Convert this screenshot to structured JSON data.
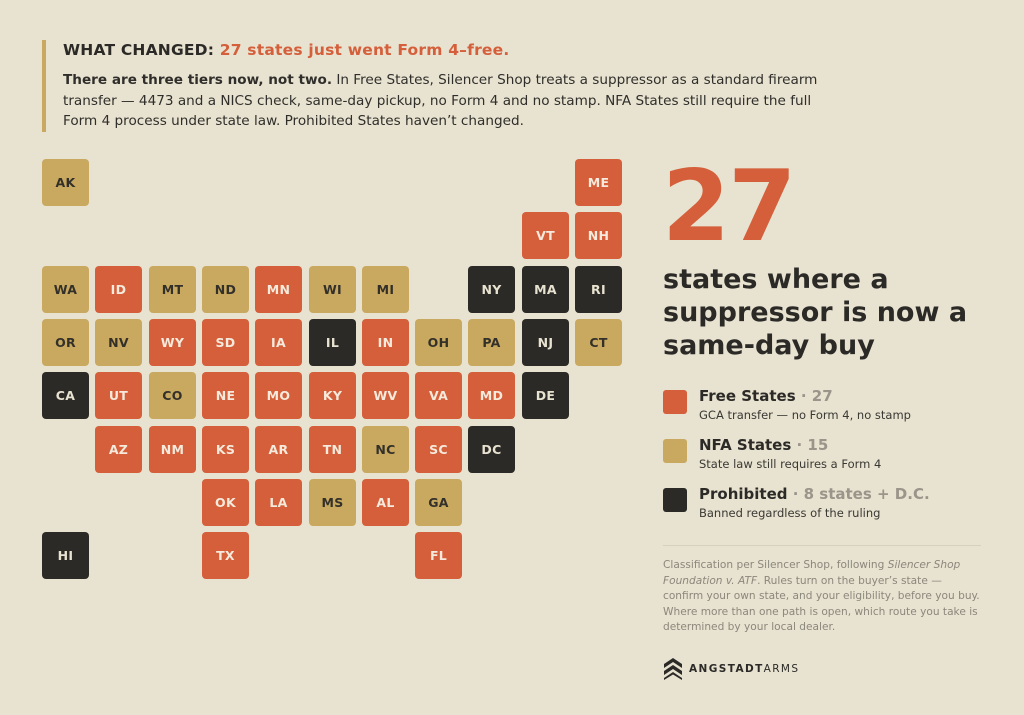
{
  "header": {
    "label": "WHAT CHANGED:",
    "highlight": "27 states just went Form 4–free.",
    "lead": "There are three tiers now, not two.",
    "body": " In Free States, Silencer Shop treats a suppressor as a standard firearm transfer — 4473 and a NICS check, same-day pickup, no Form 4 and no stamp. NFA States still require the full Form 4 process under state law. Prohibited States haven’t changed."
  },
  "colors": {
    "free": "#d45f3a",
    "nfa": "#c9a95f",
    "prohibited": "#2b2a27",
    "background": "#e8e2d0"
  },
  "map": {
    "states": [
      {
        "abbr": "AK",
        "tier": "nfa",
        "row": 0,
        "col": 0
      },
      {
        "abbr": "ME",
        "tier": "free",
        "row": 0,
        "col": 10
      },
      {
        "abbr": "VT",
        "tier": "free",
        "row": 1,
        "col": 9
      },
      {
        "abbr": "NH",
        "tier": "free",
        "row": 1,
        "col": 10
      },
      {
        "abbr": "WA",
        "tier": "nfa",
        "row": 2,
        "col": 0
      },
      {
        "abbr": "ID",
        "tier": "free",
        "row": 2,
        "col": 1
      },
      {
        "abbr": "MT",
        "tier": "nfa",
        "row": 2,
        "col": 2
      },
      {
        "abbr": "ND",
        "tier": "nfa",
        "row": 2,
        "col": 3
      },
      {
        "abbr": "MN",
        "tier": "free",
        "row": 2,
        "col": 4
      },
      {
        "abbr": "WI",
        "tier": "nfa",
        "row": 2,
        "col": 5
      },
      {
        "abbr": "MI",
        "tier": "nfa",
        "row": 2,
        "col": 6
      },
      {
        "abbr": "NY",
        "tier": "prohibited",
        "row": 2,
        "col": 8
      },
      {
        "abbr": "MA",
        "tier": "prohibited",
        "row": 2,
        "col": 9
      },
      {
        "abbr": "RI",
        "tier": "prohibited",
        "row": 2,
        "col": 10
      },
      {
        "abbr": "OR",
        "tier": "nfa",
        "row": 3,
        "col": 0
      },
      {
        "abbr": "NV",
        "tier": "nfa",
        "row": 3,
        "col": 1
      },
      {
        "abbr": "WY",
        "tier": "free",
        "row": 3,
        "col": 2
      },
      {
        "abbr": "SD",
        "tier": "free",
        "row": 3,
        "col": 3
      },
      {
        "abbr": "IA",
        "tier": "free",
        "row": 3,
        "col": 4
      },
      {
        "abbr": "IL",
        "tier": "prohibited",
        "row": 3,
        "col": 5
      },
      {
        "abbr": "IN",
        "tier": "free",
        "row": 3,
        "col": 6
      },
      {
        "abbr": "OH",
        "tier": "nfa",
        "row": 3,
        "col": 7
      },
      {
        "abbr": "PA",
        "tier": "nfa",
        "row": 3,
        "col": 8
      },
      {
        "abbr": "NJ",
        "tier": "prohibited",
        "row": 3,
        "col": 9
      },
      {
        "abbr": "CT",
        "tier": "nfa",
        "row": 3,
        "col": 10
      },
      {
        "abbr": "CA",
        "tier": "prohibited",
        "row": 4,
        "col": 0
      },
      {
        "abbr": "UT",
        "tier": "free",
        "row": 4,
        "col": 1
      },
      {
        "abbr": "CO",
        "tier": "nfa",
        "row": 4,
        "col": 2
      },
      {
        "abbr": "NE",
        "tier": "free",
        "row": 4,
        "col": 3
      },
      {
        "abbr": "MO",
        "tier": "free",
        "row": 4,
        "col": 4
      },
      {
        "abbr": "KY",
        "tier": "free",
        "row": 4,
        "col": 5
      },
      {
        "abbr": "WV",
        "tier": "free",
        "row": 4,
        "col": 6
      },
      {
        "abbr": "VA",
        "tier": "free",
        "row": 4,
        "col": 7
      },
      {
        "abbr": "MD",
        "tier": "free",
        "row": 4,
        "col": 8
      },
      {
        "abbr": "DE",
        "tier": "prohibited",
        "row": 4,
        "col": 9
      },
      {
        "abbr": "AZ",
        "tier": "free",
        "row": 5,
        "col": 1
      },
      {
        "abbr": "NM",
        "tier": "free",
        "row": 5,
        "col": 2
      },
      {
        "abbr": "KS",
        "tier": "free",
        "row": 5,
        "col": 3
      },
      {
        "abbr": "AR",
        "tier": "free",
        "row": 5,
        "col": 4
      },
      {
        "abbr": "TN",
        "tier": "free",
        "row": 5,
        "col": 5
      },
      {
        "abbr": "NC",
        "tier": "nfa",
        "row": 5,
        "col": 6
      },
      {
        "abbr": "SC",
        "tier": "free",
        "row": 5,
        "col": 7
      },
      {
        "abbr": "DC",
        "tier": "prohibited",
        "row": 5,
        "col": 8
      },
      {
        "abbr": "OK",
        "tier": "free",
        "row": 6,
        "col": 3
      },
      {
        "abbr": "LA",
        "tier": "free",
        "row": 6,
        "col": 4
      },
      {
        "abbr": "MS",
        "tier": "nfa",
        "row": 6,
        "col": 5
      },
      {
        "abbr": "AL",
        "tier": "free",
        "row": 6,
        "col": 6
      },
      {
        "abbr": "GA",
        "tier": "nfa",
        "row": 6,
        "col": 7
      },
      {
        "abbr": "HI",
        "tier": "prohibited",
        "row": 7,
        "col": 0
      },
      {
        "abbr": "TX",
        "tier": "free",
        "row": 7,
        "col": 3
      },
      {
        "abbr": "FL",
        "tier": "free",
        "row": 7,
        "col": 7
      }
    ]
  },
  "stat": {
    "number": "27",
    "caption": "states where a suppressor is now a same-day buy"
  },
  "legend": {
    "items": [
      {
        "tier": "free",
        "title": "Free States",
        "count": " · 27",
        "desc": "GCA transfer — no Form 4, no stamp"
      },
      {
        "tier": "nfa",
        "title": "NFA States",
        "count": " · 15",
        "desc": "State law still requires a Form 4"
      },
      {
        "tier": "prohibited",
        "title": "Prohibited",
        "count": " · 8 states + D.C.",
        "desc": "Banned regardless of the ruling"
      }
    ]
  },
  "footnote": {
    "pre": "Classification per Silencer Shop, following ",
    "case": "Silencer Shop Foundation v. ATF",
    "post": ". Rules turn on the buyer’s state — confirm your own state, and your eligibility, before you buy. Where more than one path is open, which route you take is determined by your local dealer."
  },
  "brand": {
    "bold": "ANGSTADT",
    "light": "ARMS",
    "icon": "chevron-logo-icon"
  }
}
